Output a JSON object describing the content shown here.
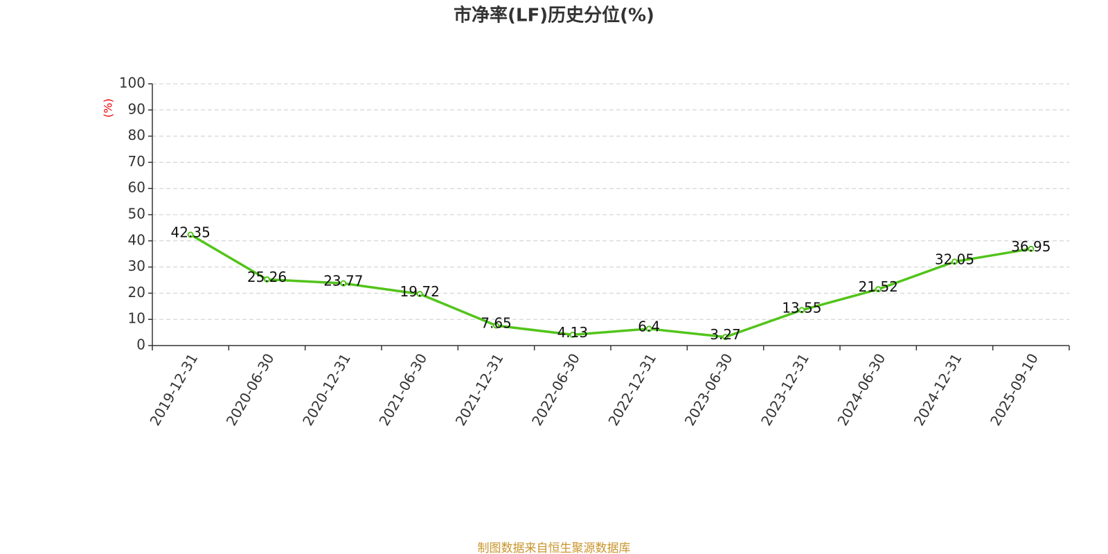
{
  "chart_data": {
    "type": "line",
    "title": "市净率(LF)历史分位(%)",
    "y_label": "(%)",
    "source": "制图数据来自恒生聚源数据库",
    "categories": [
      "2019-12-31",
      "2020-06-30",
      "2020-12-31",
      "2021-06-30",
      "2021-12-31",
      "2022-06-30",
      "2022-12-31",
      "2023-06-30",
      "2023-12-31",
      "2024-06-30",
      "2024-12-31",
      "2025-09-10"
    ],
    "values": [
      42.35,
      25.26,
      23.77,
      19.72,
      7.65,
      4.13,
      6.4,
      3.27,
      13.55,
      21.52,
      32.05,
      36.95
    ],
    "color": "#52c41a",
    "ylim": [
      0,
      100
    ],
    "yticks": [
      0,
      10,
      20,
      30,
      40,
      50,
      60,
      70,
      80,
      90,
      100
    ],
    "grid": true
  }
}
